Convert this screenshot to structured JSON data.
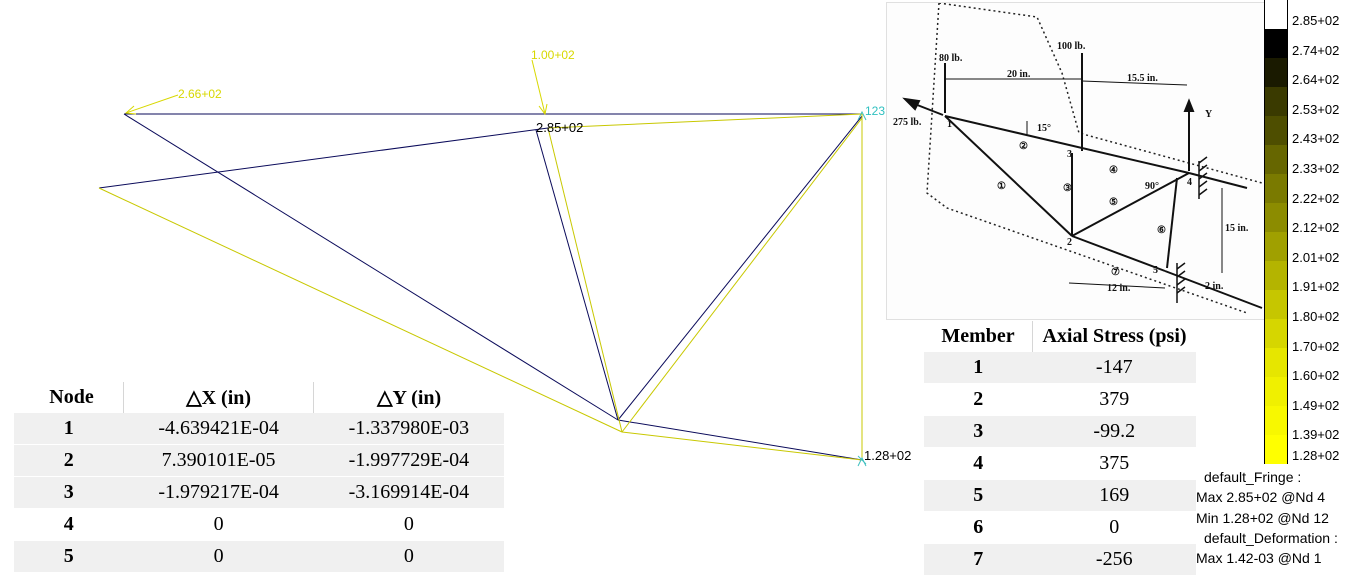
{
  "model_labels": {
    "force_left": "2.66+02",
    "force_top": "1.00+02",
    "max_label": "2.85+02",
    "node_label": "123",
    "min_label": "1.28+02"
  },
  "node_table": {
    "headers": [
      "Node",
      "△X (in)",
      "△Y (in)"
    ],
    "rows": [
      [
        "1",
        "-4.639421E-04",
        "-1.337980E-03"
      ],
      [
        "2",
        "7.390101E-05",
        "-1.997729E-04"
      ],
      [
        "3",
        "-1.979217E-04",
        "-3.169914E-04"
      ],
      [
        "4",
        "0",
        "0"
      ],
      [
        "5",
        "0",
        "0"
      ]
    ]
  },
  "member_table": {
    "headers": [
      "Member",
      "Axial Stress (psi)"
    ],
    "rows": [
      [
        "1",
        "-147"
      ],
      [
        "2",
        "379"
      ],
      [
        "3",
        "-99.2"
      ],
      [
        "4",
        "375"
      ],
      [
        "5",
        "169"
      ],
      [
        "6",
        "0"
      ],
      [
        "7",
        "-256"
      ]
    ]
  },
  "fringe_legend": {
    "ticks": [
      "2.85+02",
      "2.74+02",
      "2.64+02",
      "2.53+02",
      "2.43+02",
      "2.33+02",
      "2.22+02",
      "2.12+02",
      "2.01+02",
      "1.91+02",
      "1.80+02",
      "1.70+02",
      "1.60+02",
      "1.49+02",
      "1.39+02",
      "1.28+02"
    ],
    "colors": [
      "#ffffff",
      "#000000",
      "#1a1a00",
      "#3a3a00",
      "#4e4e00",
      "#666600",
      "#7a7a00",
      "#8c8c00",
      "#a0a000",
      "#b4b400",
      "#c6c600",
      "#d6d600",
      "#e6e600",
      "#f0f000",
      "#f8f800",
      "#ffff00"
    ]
  },
  "result_info": {
    "fringe_title": "default_Fringe :",
    "fringe_max": "Max 2.85+02 @Nd 4",
    "fringe_min": "Min 1.28+02 @Nd 12",
    "deform_title": "default_Deformation :",
    "deform_max": "Max 1.42-03 @Nd 1"
  },
  "reference_diagram": {
    "load_80": "80 lb.",
    "load_100": "100 lb.",
    "load_275": "275 lb.",
    "dim_20": "20 in.",
    "dim_155": "15.5 in.",
    "dim_15": "15 in.",
    "dim_12": "12 in.",
    "dim_2": "2 in.",
    "angle_15": "15°",
    "angle_90": "90°",
    "axis_y": "Y",
    "node_1": "1",
    "node_2": "2",
    "node_3": "3",
    "node_4": "4",
    "node_5": "5",
    "member_1": "①",
    "member_2": "②",
    "member_3": "③",
    "member_4": "④",
    "member_5": "⑤",
    "member_6": "⑥",
    "member_7": "⑦"
  }
}
